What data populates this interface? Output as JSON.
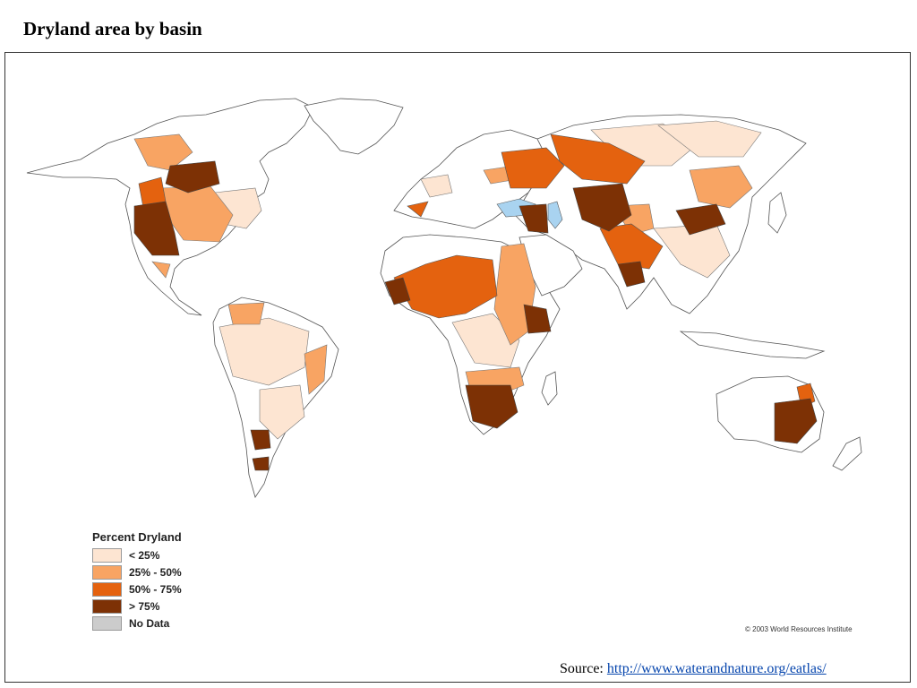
{
  "title": "Dryland area by basin",
  "legend": {
    "title": "Percent Dryland",
    "items": [
      {
        "label": "< 25%",
        "color": "#fde5d2"
      },
      {
        "label": "25% - 50%",
        "color": "#f8a463"
      },
      {
        "label": "50% - 75%",
        "color": "#e4620f"
      },
      {
        "label": "> 75%",
        "color": "#7d3105"
      },
      {
        "label": "No Data",
        "color": "#cccccc"
      }
    ]
  },
  "copyright": "© 2003 World Resources Institute",
  "source": {
    "prefix": "Source: ",
    "link_text": "http://www.waterandnature.org/eatlas/"
  },
  "colors": {
    "land": "#ffffff",
    "water": "#a9d3f0",
    "outline": "#555555"
  }
}
